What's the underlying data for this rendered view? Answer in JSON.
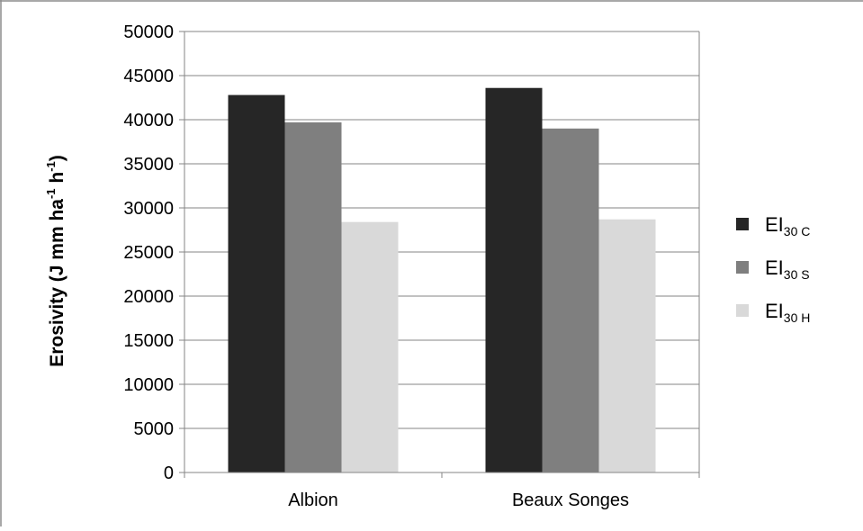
{
  "chart_data": {
    "type": "bar",
    "title": "",
    "xlabel": "",
    "ylabel": "Erosivity (J mm ha",
    "ylabel_parts": [
      {
        "text": "Erosivity (J mm ha",
        "sup": false
      },
      {
        "text": "-1",
        "sup": true
      },
      {
        "text": " h",
        "sup": false
      },
      {
        "text": "-1",
        "sup": true
      },
      {
        "text": ")",
        "sup": false
      }
    ],
    "categories": [
      "Albion",
      "Beaux Songes"
    ],
    "series": [
      {
        "name": "EI30 C",
        "name_main": "EI",
        "name_sub": "30 C",
        "color": "#262626",
        "values": [
          42800,
          43600
        ]
      },
      {
        "name": "EI30 S",
        "name_main": "EI",
        "name_sub": "30 S",
        "color": "#7f7f7f",
        "values": [
          39700,
          39000
        ]
      },
      {
        "name": "EI30 H",
        "name_main": "EI",
        "name_sub": "30 H",
        "color": "#d9d9d9",
        "values": [
          28400,
          28700
        ]
      }
    ],
    "ylim": [
      0,
      50000
    ],
    "yticks": [
      "0",
      "5000",
      "10000",
      "15000",
      "20000",
      "25000",
      "30000",
      "35000",
      "40000",
      "45000",
      "50000"
    ],
    "grid": true,
    "legend_position": "right"
  }
}
